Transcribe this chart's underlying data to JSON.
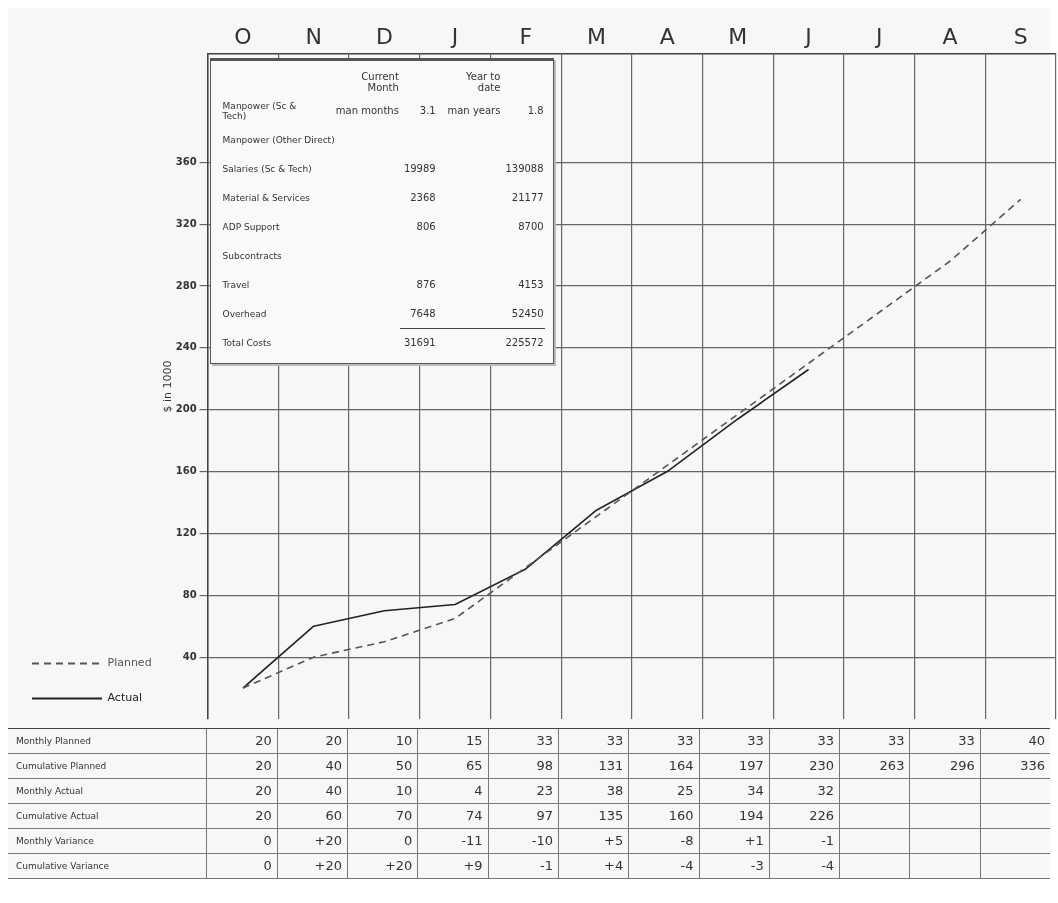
{
  "chart_data": {
    "type": "line",
    "ylabel": "$ in 1000",
    "categories": [
      "O",
      "N",
      "D",
      "J",
      "F",
      "M",
      "A",
      "M",
      "J",
      "J",
      "A",
      "S"
    ],
    "ylim": [
      0,
      430
    ],
    "yticks": [
      40,
      80,
      120,
      160,
      200,
      240,
      280,
      320,
      360
    ],
    "grid": true,
    "legend": "left",
    "marker": "none",
    "series": [
      {
        "name": "Planned",
        "color": "#555555",
        "line_style": "dashed",
        "values": [
          20,
          40,
          50,
          65,
          98,
          131,
          164,
          197,
          230,
          263,
          296,
          336
        ]
      },
      {
        "name": "Actual",
        "color": "#222222",
        "line_style": "solid",
        "values": [
          20,
          60,
          70,
          74,
          97,
          135,
          160,
          194,
          226,
          null,
          null,
          null
        ]
      }
    ],
    "annotations": [
      "\tCurrent Month\t\tYear to date",
      "Manpower (Sc & Tech)\tman months\t3.1\tman years\t1.8",
      "Manpower (Other Direct)",
      "Salaries (Sc & Tech)\t\t19989\t\t139088",
      "Material & Services\t\t2368\t\t21177",
      "ADP Support\t\t806\t\t8700",
      "Subcontracts",
      "Travel\t\t876\t\t4153",
      "Overhead\t\t7648\t\t52450",
      "Total Costs\t\t31691\t\t225572",
      "Monthly Planned\t20\t20\t10\t15\t33\t33\t33\t33\t33\t33\t33\t40",
      "Cumulative Planned\t20\t40\t50\t65\t98\t131\t164\t197\t230\t263\t296\t336",
      "Monthly Actual\t20\t40\t10\t4\t23\t38\t25\t34\t32",
      "Cumulative Actual\t20\t60\t70\t74\t97\t135\t160\t194\t226",
      "Monthly Variance\t0\t+20\t0\t-11\t-10\t+5\t-8\t+1\t-1",
      "Cumulative Variance\t0\t+20\t+20\t+9\t-1\t+4\t-4\t-3\t-4"
    ]
  }
}
